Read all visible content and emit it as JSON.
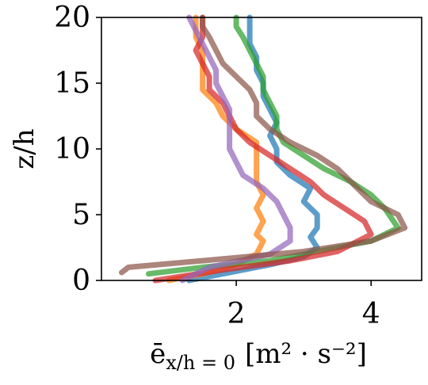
{
  "chart_data": {
    "type": "line",
    "xlabel_main": "ē",
    "xlabel_sub": "x/h = 0",
    "xlabel_units": "[m² · s⁻²]",
    "ylabel": "z/h",
    "xlim": [
      0.0,
      4.75
    ],
    "ylim": [
      0,
      20
    ],
    "xticks": [
      2,
      4
    ],
    "yticks": [
      0,
      5,
      10,
      15,
      20
    ],
    "grid": false,
    "series": [
      {
        "color": "#1f77b4",
        "points": [
          [
            1.3,
            0
          ],
          [
            1.8,
            0.5
          ],
          [
            2.5,
            1.2
          ],
          [
            3.0,
            1.8
          ],
          [
            3.2,
            2.5
          ],
          [
            3.1,
            3.3
          ],
          [
            3.2,
            4.0
          ],
          [
            3.2,
            5.0
          ],
          [
            3.0,
            6.0
          ],
          [
            3.1,
            7.0
          ],
          [
            2.8,
            8.0
          ],
          [
            2.6,
            9.0
          ],
          [
            2.6,
            10.0
          ],
          [
            2.5,
            11.0
          ],
          [
            2.6,
            12.0
          ],
          [
            2.5,
            13.0
          ],
          [
            2.4,
            14.0
          ],
          [
            2.4,
            15.0
          ],
          [
            2.3,
            16.0
          ],
          [
            2.3,
            17.0
          ],
          [
            2.2,
            18.0
          ],
          [
            2.2,
            19.0
          ],
          [
            2.2,
            20.0
          ]
        ]
      },
      {
        "color": "#ff7f0e",
        "points": [
          [
            1.0,
            0
          ],
          [
            1.5,
            0.5
          ],
          [
            2.0,
            1.2
          ],
          [
            2.3,
            2.0
          ],
          [
            2.4,
            3.0
          ],
          [
            2.3,
            3.5
          ],
          [
            2.4,
            4.5
          ],
          [
            2.3,
            5.5
          ],
          [
            2.4,
            6.5
          ],
          [
            2.3,
            7.5
          ],
          [
            2.3,
            8.5
          ],
          [
            2.3,
            9.5
          ],
          [
            2.3,
            10.5
          ],
          [
            2.0,
            11.5
          ],
          [
            1.8,
            12.5
          ],
          [
            1.7,
            13.5
          ],
          [
            1.5,
            14.5
          ],
          [
            1.5,
            15.5
          ],
          [
            1.5,
            16.5
          ],
          [
            1.5,
            17.5
          ],
          [
            1.4,
            18.5
          ],
          [
            1.4,
            19.5
          ],
          [
            1.4,
            20.0
          ]
        ]
      },
      {
        "color": "#2ca02c",
        "points": [
          [
            0.7,
            0.5
          ],
          [
            1.5,
            1.0
          ],
          [
            2.5,
            1.5
          ],
          [
            3.5,
            2.5
          ],
          [
            4.0,
            3.0
          ],
          [
            4.4,
            4.0
          ],
          [
            4.2,
            5.5
          ],
          [
            4.0,
            6.5
          ],
          [
            3.7,
            7.5
          ],
          [
            3.3,
            8.5
          ],
          [
            3.0,
            9.5
          ],
          [
            2.7,
            10.5
          ],
          [
            2.6,
            11.5
          ],
          [
            2.6,
            12.5
          ],
          [
            2.5,
            13.5
          ],
          [
            2.4,
            14.5
          ],
          [
            2.4,
            15.5
          ],
          [
            2.3,
            16.5
          ],
          [
            2.2,
            17.5
          ],
          [
            2.1,
            18.5
          ],
          [
            2.0,
            19.3
          ],
          [
            2.0,
            20.0
          ]
        ]
      },
      {
        "color": "#d62728",
        "points": [
          [
            0.8,
            0
          ],
          [
            1.8,
            0.8
          ],
          [
            2.8,
            1.5
          ],
          [
            3.5,
            2.2
          ],
          [
            4.0,
            3.5
          ],
          [
            3.9,
            4.5
          ],
          [
            3.6,
            5.5
          ],
          [
            3.3,
            6.5
          ],
          [
            3.1,
            7.5
          ],
          [
            2.8,
            8.5
          ],
          [
            2.5,
            9.5
          ],
          [
            2.2,
            10.5
          ],
          [
            2.0,
            11.5
          ],
          [
            1.9,
            12.5
          ],
          [
            1.8,
            13.5
          ],
          [
            1.6,
            14.5
          ],
          [
            1.6,
            15.5
          ],
          [
            1.5,
            16.5
          ],
          [
            1.4,
            17.5
          ],
          [
            1.5,
            18.5
          ],
          [
            1.5,
            19.2
          ],
          [
            1.5,
            20.0
          ]
        ]
      },
      {
        "color": "#9467bd",
        "points": [
          [
            1.2,
            0
          ],
          [
            1.6,
            1.0
          ],
          [
            2.5,
            2.0
          ],
          [
            2.8,
            3.0
          ],
          [
            2.8,
            4.0
          ],
          [
            2.7,
            5.0
          ],
          [
            2.6,
            6.0
          ],
          [
            2.4,
            7.0
          ],
          [
            2.1,
            8.0
          ],
          [
            2.0,
            9.0
          ],
          [
            1.9,
            10.0
          ],
          [
            1.9,
            11.0
          ],
          [
            1.9,
            12.0
          ],
          [
            1.9,
            13.0
          ],
          [
            1.8,
            14.0
          ],
          [
            1.7,
            15.0
          ],
          [
            1.7,
            16.0
          ],
          [
            1.6,
            17.0
          ],
          [
            1.5,
            18.0
          ],
          [
            1.4,
            19.0
          ],
          [
            1.3,
            20.0
          ]
        ]
      },
      {
        "color": "#8c564b",
        "points": [
          [
            0.3,
            0.6
          ],
          [
            0.4,
            1.0
          ],
          [
            1.5,
            1.5
          ],
          [
            3.0,
            2.2
          ],
          [
            4.0,
            3.0
          ],
          [
            4.5,
            4.0
          ],
          [
            4.4,
            5.0
          ],
          [
            4.0,
            6.0
          ],
          [
            3.7,
            7.5
          ],
          [
            3.5,
            8.5
          ],
          [
            3.2,
            9.5
          ],
          [
            2.8,
            10.5
          ],
          [
            2.5,
            11.5
          ],
          [
            2.3,
            12.5
          ],
          [
            2.3,
            13.5
          ],
          [
            2.2,
            14.5
          ],
          [
            2.0,
            15.5
          ],
          [
            1.8,
            16.5
          ],
          [
            1.7,
            17.5
          ],
          [
            1.6,
            18.5
          ],
          [
            1.5,
            19.3
          ],
          [
            1.5,
            20.0
          ]
        ]
      }
    ]
  }
}
